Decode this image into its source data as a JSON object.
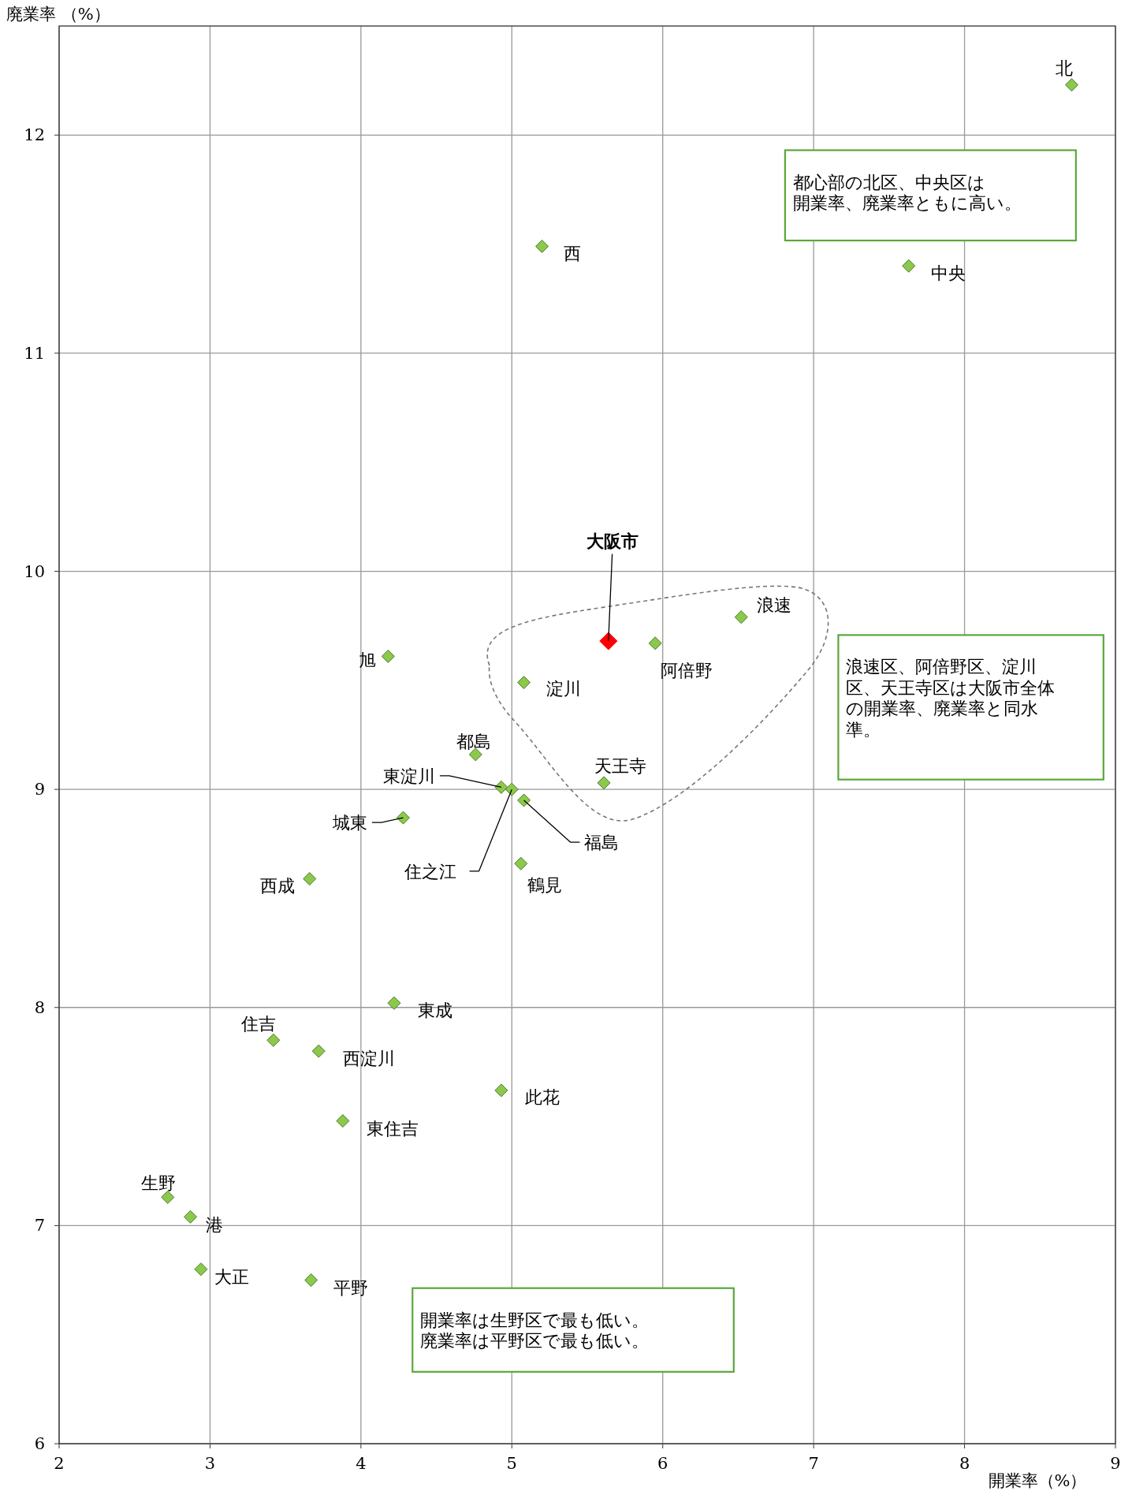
{
  "chart_data": {
    "type": "scatter",
    "xlabel": "開業率（%）",
    "ylabel": "廃業率 （%）",
    "xlim": [
      2,
      9
    ],
    "ylim": [
      6,
      12.5
    ],
    "xticks": [
      2,
      3,
      4,
      5,
      6,
      7,
      8,
      9
    ],
    "yticks": [
      6,
      7,
      8,
      9,
      10,
      11,
      12
    ],
    "grid": true,
    "marker": "diamond",
    "series": [
      {
        "color": "#8cc84b",
        "x": [
          8.71,
          7.63,
          5.2,
          6.52,
          5.95,
          5.08,
          4.18,
          4.76,
          4.93,
          5.0,
          5.08,
          5.61,
          4.28,
          5.06,
          3.66,
          4.22,
          3.42,
          3.72,
          4.93,
          3.88,
          2.72,
          2.87,
          2.94,
          3.67
        ],
        "values": [
          12.23,
          11.4,
          11.49,
          9.79,
          9.67,
          9.49,
          9.61,
          9.16,
          9.01,
          9.0,
          8.95,
          9.03,
          8.87,
          8.66,
          8.59,
          8.02,
          7.85,
          7.8,
          7.62,
          7.48,
          7.13,
          7.04,
          6.8,
          6.75
        ]
      },
      {
        "color": "#ff0000",
        "x": [
          5.64
        ],
        "values": [
          9.68
        ]
      }
    ],
    "annotations": [
      {
        "text": "北",
        "x": 8.71,
        "y": 12.23
      },
      {
        "text": "中央",
        "x": 7.63,
        "y": 11.4
      },
      {
        "text": "西",
        "x": 5.2,
        "y": 11.49
      },
      {
        "text": "浪速",
        "x": 6.52,
        "y": 9.79
      },
      {
        "text": "阿倍野",
        "x": 5.95,
        "y": 9.67
      },
      {
        "text": "淀川",
        "x": 5.08,
        "y": 9.49
      },
      {
        "text": "旭",
        "x": 4.18,
        "y": 9.61
      },
      {
        "text": "都島",
        "x": 4.76,
        "y": 9.16
      },
      {
        "text": "東淀川",
        "x": 4.93,
        "y": 9.01
      },
      {
        "text": "住之江",
        "x": 5.0,
        "y": 9.0
      },
      {
        "text": "福島",
        "x": 5.08,
        "y": 8.95
      },
      {
        "text": "天王寺",
        "x": 5.61,
        "y": 9.03
      },
      {
        "text": "城東",
        "x": 4.28,
        "y": 8.87
      },
      {
        "text": "鶴見",
        "x": 5.06,
        "y": 8.66
      },
      {
        "text": "西成",
        "x": 3.66,
        "y": 8.59
      },
      {
        "text": "東成",
        "x": 4.22,
        "y": 8.02
      },
      {
        "text": "住吉",
        "x": 3.42,
        "y": 7.85
      },
      {
        "text": "西淀川",
        "x": 3.72,
        "y": 7.8
      },
      {
        "text": "此花",
        "x": 4.93,
        "y": 7.62
      },
      {
        "text": "東住吉",
        "x": 3.88,
        "y": 7.48
      },
      {
        "text": "生野",
        "x": 2.72,
        "y": 7.13
      },
      {
        "text": "港",
        "x": 2.87,
        "y": 7.04
      },
      {
        "text": "大正",
        "x": 2.94,
        "y": 6.8
      },
      {
        "text": "平野",
        "x": 3.67,
        "y": 6.75
      },
      {
        "text": "大阪市",
        "x": 5.64,
        "y": 9.68
      },
      "都心部の北区、中央区は開業率、廃業率ともに高い。",
      "浪速区、阿倍野区、淀川区、天王寺区は大阪市全体の開業率、廃業率と同水準。",
      "開業率は生野区で最も低い。廃業率は平野区で最も低い。"
    ]
  }
}
